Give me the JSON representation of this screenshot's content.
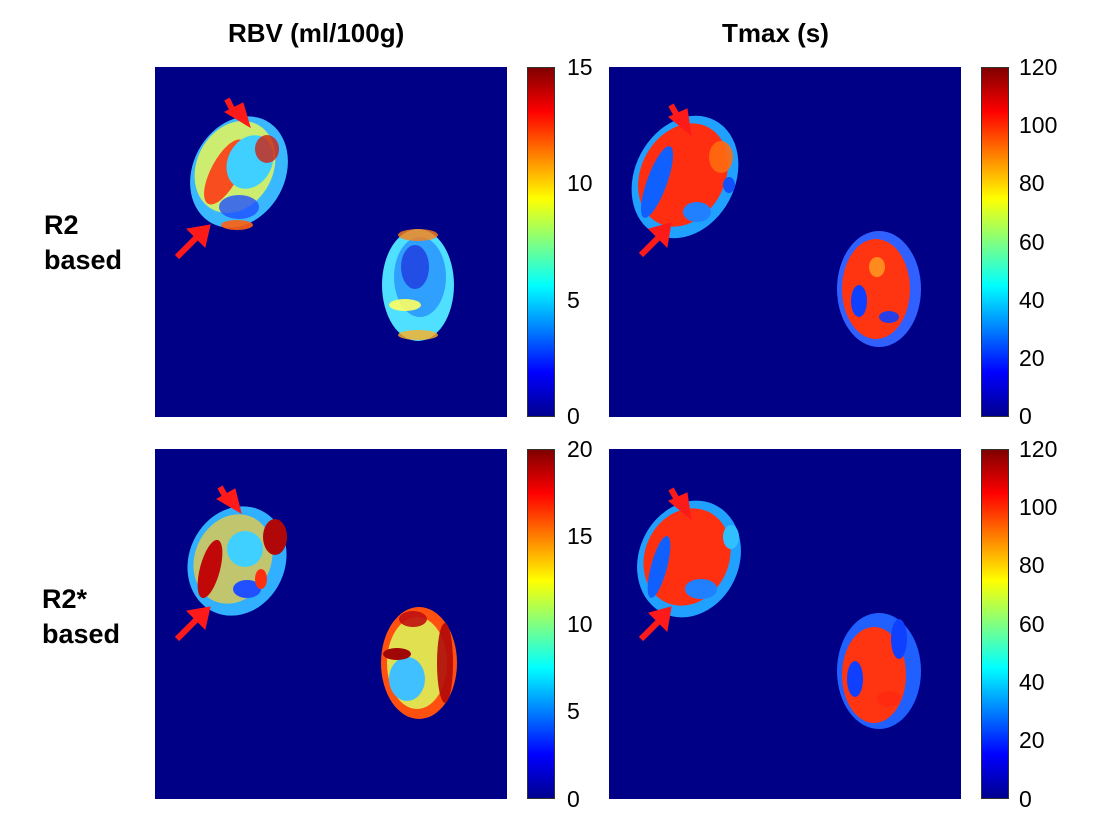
{
  "columns": {
    "rbv": "RBV (ml/100g)",
    "tmax": "Tmax (s)"
  },
  "rows": {
    "r2": [
      "R2",
      "based"
    ],
    "r2star": [
      "R2*",
      "based"
    ]
  },
  "colorbars": {
    "rbv_r2": [
      "15",
      "10",
      "5",
      "0"
    ],
    "tmax_r2": [
      "120",
      "100",
      "80",
      "60",
      "40",
      "20",
      "0"
    ],
    "rbv_r2star": [
      "20",
      "15",
      "10",
      "5",
      "0"
    ],
    "tmax_r2star": [
      "120",
      "100",
      "80",
      "60",
      "40",
      "20",
      "0"
    ]
  },
  "colors": {
    "background_map": "#000087",
    "arrow": "#ff1a1a"
  }
}
